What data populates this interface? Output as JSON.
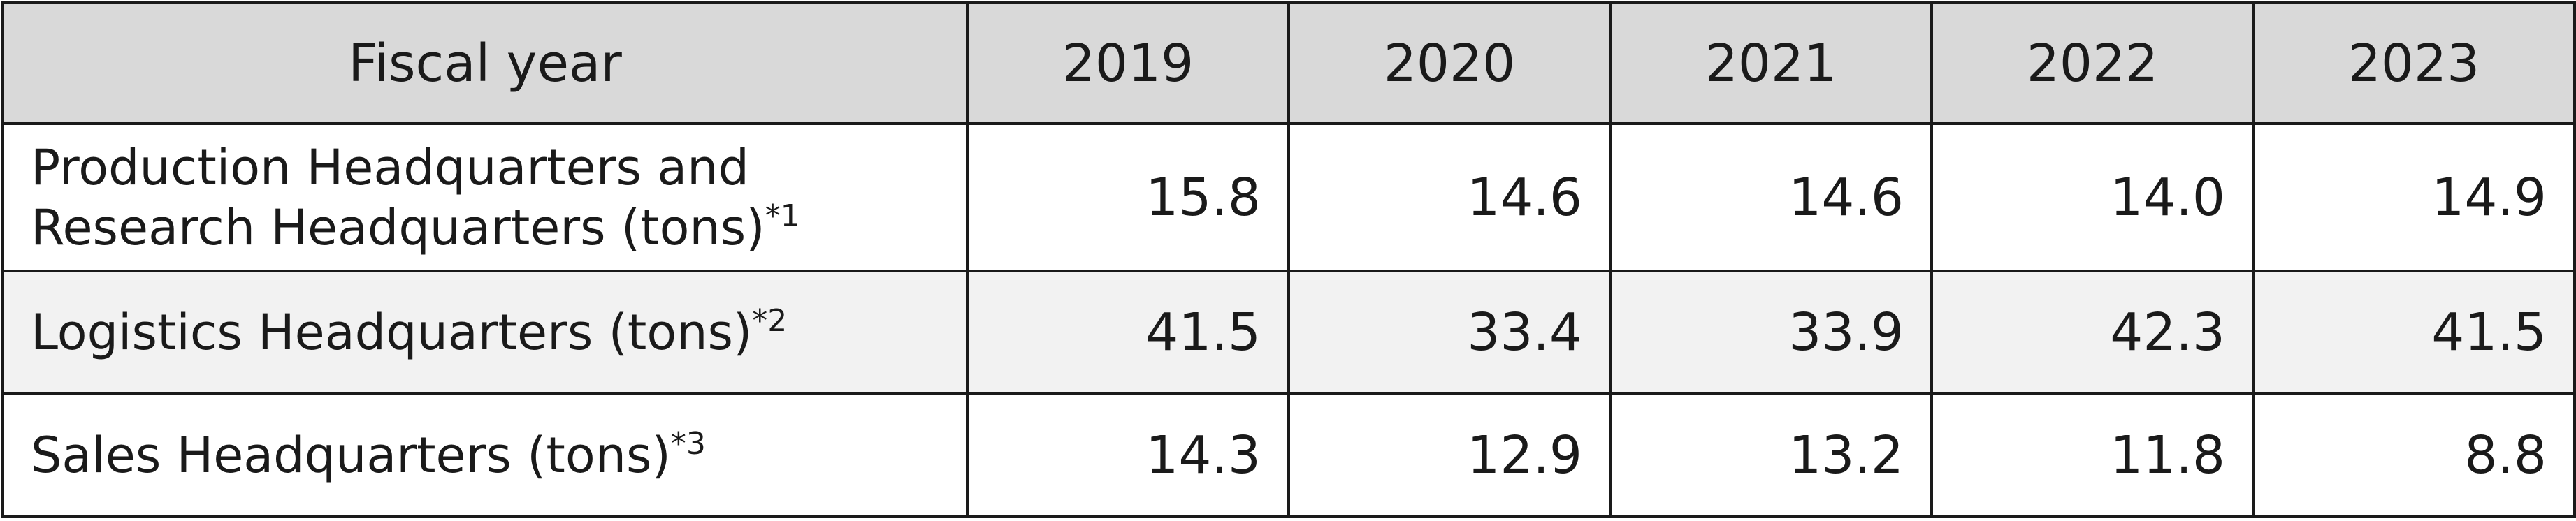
{
  "table": {
    "header": {
      "label": "Fiscal year",
      "years": [
        "2019",
        "2020",
        "2021",
        "2022",
        "2023"
      ]
    },
    "rows": [
      {
        "label_lines": [
          "Production Headquarters and",
          "Research Headquarters (tons)"
        ],
        "footnote": "*1",
        "values": [
          "15.8",
          "14.6",
          "14.6",
          "14.0",
          "14.9"
        ]
      },
      {
        "label_lines": [
          "Logistics Headquarters (tons)"
        ],
        "footnote": "*2",
        "values": [
          "41.5",
          "33.4",
          "33.9",
          "42.3",
          "41.5"
        ]
      },
      {
        "label_lines": [
          "Sales Headquarters (tons)"
        ],
        "footnote": "*3",
        "values": [
          "14.3",
          "12.9",
          "13.2",
          "11.8",
          "8.8"
        ]
      }
    ]
  }
}
